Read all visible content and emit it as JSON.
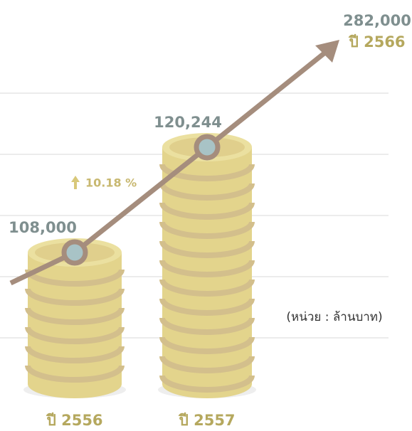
{
  "chart_data": {
    "type": "coin-stack",
    "categories": [
      "ปี 2556",
      "ปี 2557"
    ],
    "values": [
      108000,
      120244
    ],
    "value_labels": [
      "108,000",
      "120,244"
    ],
    "ylim": [
      92700,
      130000
    ],
    "growth_label": "10.18 %",
    "target": {
      "label": "ปี 2566",
      "value": 282000,
      "value_label": "282,000"
    },
    "unit": "(หน่วย : ล้านบาท)"
  }
}
